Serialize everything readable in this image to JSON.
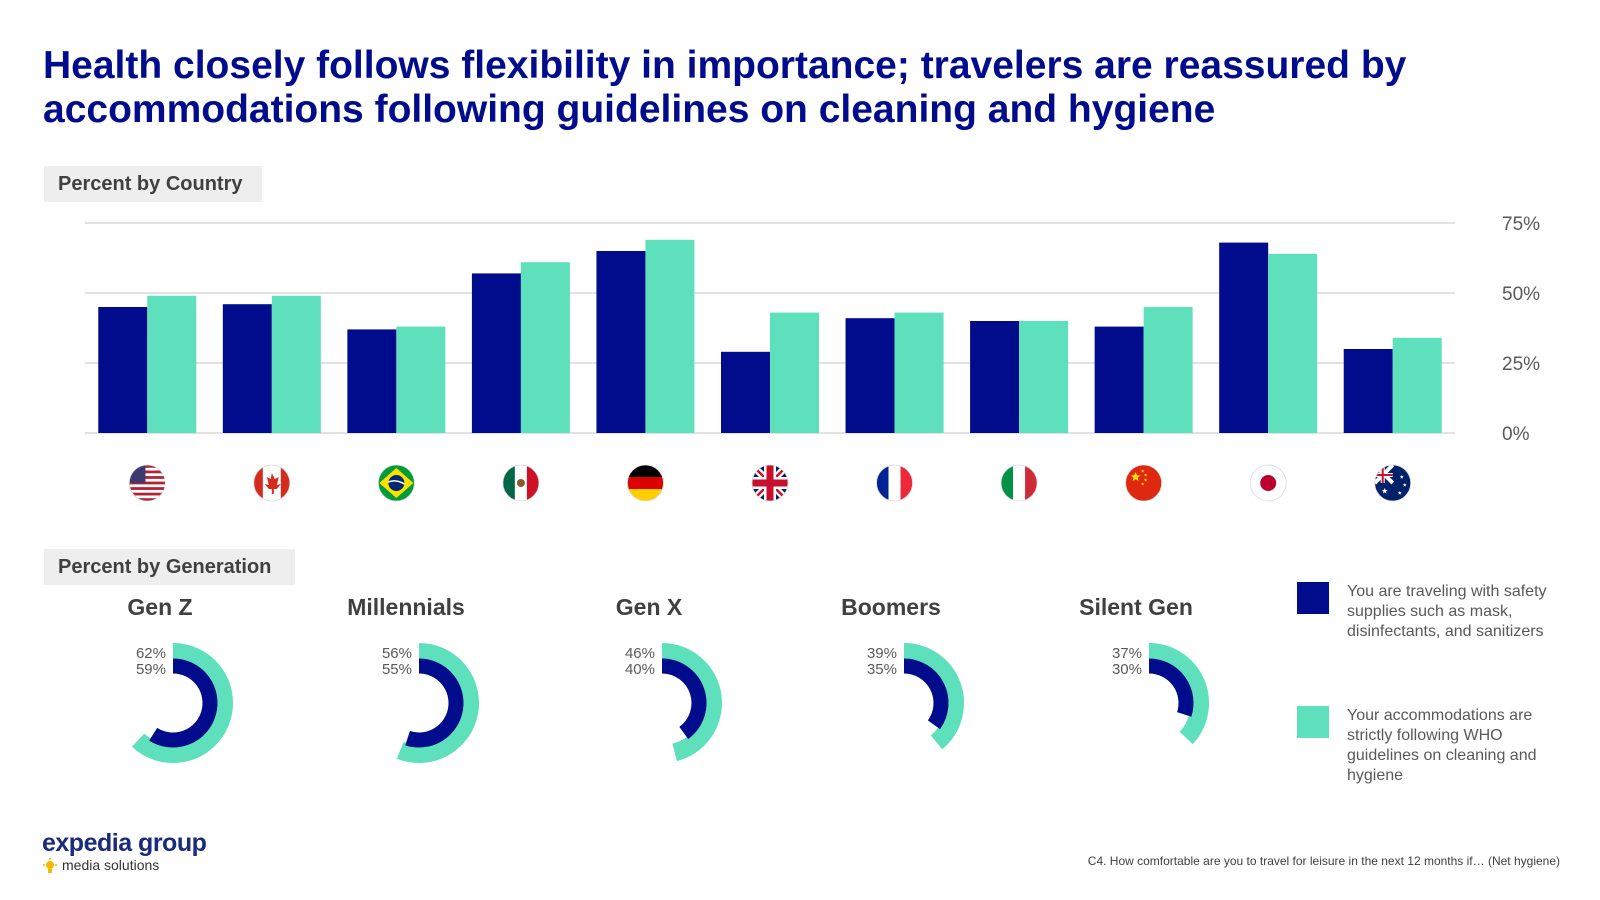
{
  "title": "Health closely follows flexibility in importance; travelers are reassured by accommodations following guidelines on cleaning and hygiene",
  "section_country": "Percent by Country",
  "section_generation": "Percent by Generation",
  "colors": {
    "dark_blue": "#000c8c",
    "teal": "#5de0bb",
    "gridline": "#d9d9d9"
  },
  "chart_data": [
    {
      "type": "bar",
      "title": "Percent by Country",
      "categories": [
        "United States",
        "Canada",
        "Brazil",
        "Mexico",
        "Germany",
        "United Kingdom",
        "France",
        "Italy",
        "China",
        "Japan",
        "Australia"
      ],
      "flag_icons": [
        "us-flag-icon",
        "canada-flag-icon",
        "brazil-flag-icon",
        "mexico-flag-icon",
        "germany-flag-icon",
        "uk-flag-icon",
        "france-flag-icon",
        "italy-flag-icon",
        "china-flag-icon",
        "japan-flag-icon",
        "australia-flag-icon"
      ],
      "series": [
        {
          "name": "You are traveling with safety supplies such as mask, disinfectants, and sanitizers",
          "color": "#000c8c",
          "values": [
            45,
            46,
            37,
            57,
            65,
            29,
            41,
            40,
            38,
            68,
            30
          ]
        },
        {
          "name": "Your accommodations are strictly following WHO guidelines on cleaning and hygiene",
          "color": "#5de0bb",
          "values": [
            49,
            49,
            38,
            61,
            69,
            43,
            43,
            40,
            45,
            64,
            34
          ]
        }
      ],
      "ylim": [
        0,
        75
      ],
      "yticks": [
        "0%",
        "25%",
        "50%",
        "75%"
      ],
      "ytick_values": [
        0,
        25,
        50,
        75
      ],
      "axis_side": "right",
      "grid": true
    },
    {
      "type": "radial-bar",
      "title": "Percent by Generation",
      "generations": [
        {
          "name": "Gen Z",
          "supplies": 59,
          "supplies_label": "59%",
          "who": 62,
          "who_label": "62%"
        },
        {
          "name": "Millennials",
          "supplies": 55,
          "supplies_label": "55%",
          "who": 56,
          "who_label": "56%"
        },
        {
          "name": "Gen X",
          "supplies": 40,
          "supplies_label": "40%",
          "who": 46,
          "who_label": "46%"
        },
        {
          "name": "Boomers",
          "supplies": 35,
          "supplies_label": "35%",
          "who": 39,
          "who_label": "39%"
        },
        {
          "name": "Silent Gen",
          "supplies": 30,
          "supplies_label": "30%",
          "who": 37,
          "who_label": "37%"
        }
      ]
    }
  ],
  "legend": [
    {
      "label": "You are traveling with safety supplies such as mask, disinfectants, and sanitizers",
      "color": "#000c8c"
    },
    {
      "label": "Your accommodations are strictly following WHO guidelines on cleaning and hygiene",
      "color": "#5de0bb"
    }
  ],
  "logo": {
    "brand": "expedia group",
    "tagline": "media solutions"
  },
  "footnote": "C4. How comfortable are you to travel for leisure in the next 12 months if… (Net hygiene)"
}
